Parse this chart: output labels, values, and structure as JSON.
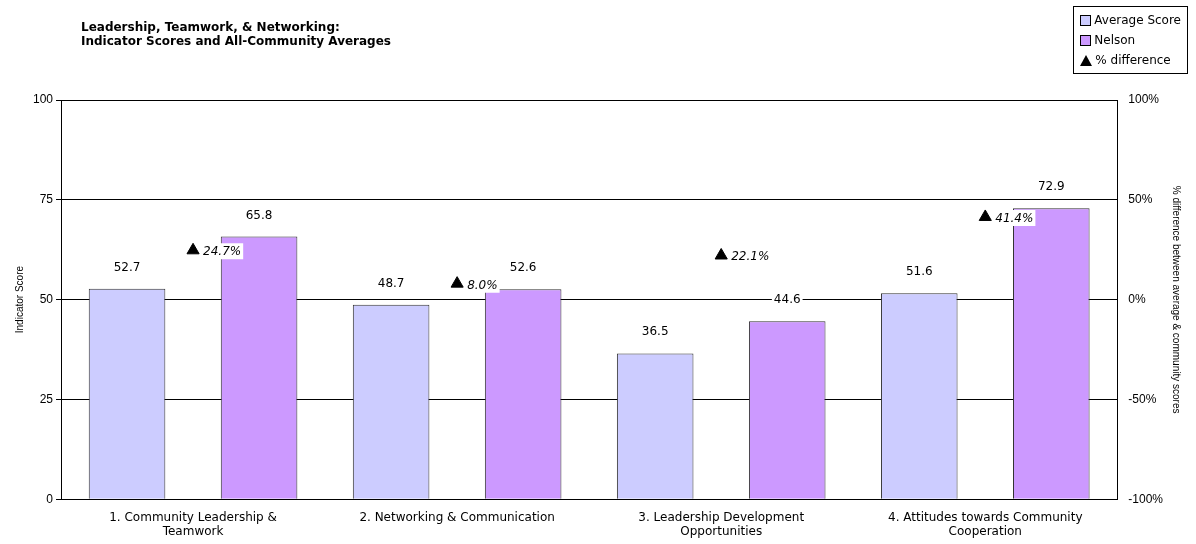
{
  "chart_data": {
    "type": "bar",
    "title": "Leadership, Teamwork, & Networking:",
    "subtitle": "Indicator Scores and All-Community Averages",
    "ylabel": "Indicator Score",
    "y2label": "% difference between average & community scores",
    "categories": [
      "1. Community Leadership & Teamwork",
      "2. Networking & Communication",
      "3. Leadership Development Opportunities",
      "4. Attitudes towards Community Cooperation"
    ],
    "series": [
      {
        "name": "Average Score",
        "color": "#ccccff",
        "values": [
          52.7,
          48.7,
          36.5,
          51.6
        ]
      },
      {
        "name": "Nelson",
        "color": "#cc99ff",
        "values": [
          65.8,
          52.6,
          44.6,
          72.9
        ]
      },
      {
        "name": "% difference",
        "type": "scatter",
        "axis": "y2",
        "marker": "triangle",
        "color": "#000000",
        "values": [
          24.7,
          8.0,
          22.1,
          41.4
        ],
        "value_labels": [
          "24.7%",
          "8.0%",
          "22.1%",
          "41.4%"
        ]
      }
    ],
    "ylim": [
      0,
      100
    ],
    "yticks": [
      0,
      25,
      50,
      75,
      100
    ],
    "y2lim": [
      -100,
      100
    ],
    "y2ticks": [
      {
        "value": -100,
        "label": "-100%"
      },
      {
        "value": -50,
        "label": "-50%"
      },
      {
        "value": 0,
        "label": "0%"
      },
      {
        "value": 50,
        "label": "50%"
      },
      {
        "value": 100,
        "label": "100%"
      }
    ],
    "grid": "y",
    "legend": "top right",
    "data_labels": true
  }
}
